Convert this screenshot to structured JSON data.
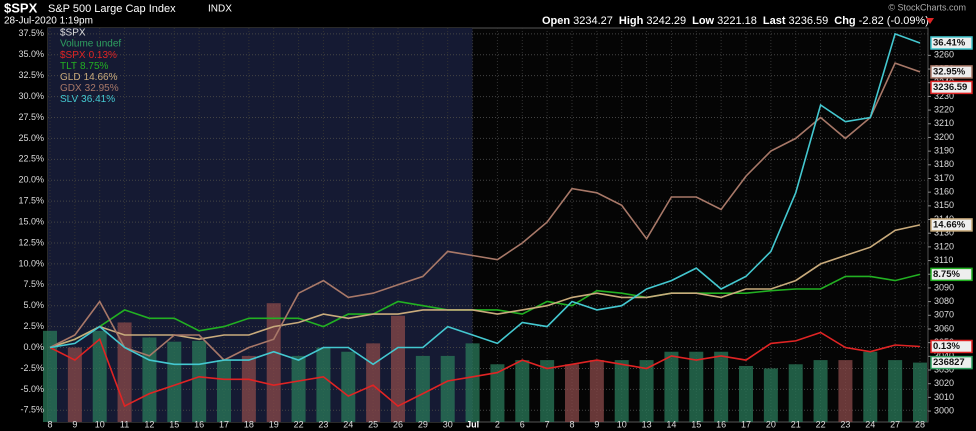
{
  "chart_data": {
    "type": "line",
    "header": {
      "symbol": "$SPX",
      "name": "S&P 500 Large Cap Index",
      "exchange": "INDX",
      "date": "28-Jul-2020 1:19pm",
      "quote": [
        {
          "label": "Open",
          "value": "3234.27"
        },
        {
          "label": "High",
          "value": "3242.29"
        },
        {
          "label": "Low",
          "value": "3221.18"
        },
        {
          "label": "Last",
          "value": "3236.59"
        },
        {
          "label": "Chg",
          "value": "-2.82 (-0.09%)"
        }
      ],
      "credit": "© StockCharts.com"
    },
    "legend_title": "$SPX",
    "categories": [
      "8",
      "9",
      "10",
      "11",
      "12",
      "15",
      "16",
      "17",
      "18",
      "19",
      "22",
      "23",
      "24",
      "25",
      "26",
      "29",
      "30",
      "Jul",
      "2",
      "6",
      "7",
      "8",
      "9",
      "10",
      "13",
      "14",
      "15",
      "16",
      "17",
      "20",
      "21",
      "22",
      "23",
      "24",
      "27",
      "28"
    ],
    "series": [
      {
        "name": "$SPX",
        "last_label": "0.13%",
        "color": "#e02424",
        "values": [
          0,
          -1.5,
          1,
          -7,
          -5.5,
          -4.5,
          -3.5,
          -3.8,
          -3.8,
          -4.5,
          -4,
          -3.5,
          -5.8,
          -4.5,
          -7,
          -5.5,
          -4,
          -3.5,
          -3,
          -1.5,
          -2.5,
          -2,
          -1.5,
          -2,
          -2.5,
          -1,
          -1.5,
          -1,
          -1.5,
          0.5,
          0.8,
          1.8,
          0,
          -0.5,
          0.3,
          0.13
        ]
      },
      {
        "name": "TLT",
        "last_label": "8.75%",
        "color": "#22b022",
        "values": [
          0,
          1,
          2.5,
          4.5,
          3.5,
          3.5,
          2,
          2.5,
          3.5,
          3.5,
          3.5,
          2.5,
          4,
          4,
          5.5,
          5,
          4.5,
          4.5,
          4.5,
          4,
          5.5,
          5,
          6.8,
          6.5,
          6,
          6.5,
          6.5,
          6.5,
          6.5,
          6.8,
          7,
          7,
          8.5,
          8.5,
          8,
          8.75
        ]
      },
      {
        "name": "GLD",
        "last_label": "14.66%",
        "color": "#c9ab7c",
        "values": [
          0,
          1,
          2.5,
          1.5,
          1.5,
          1.5,
          1,
          1.5,
          1.5,
          2.5,
          3,
          4,
          3.5,
          4,
          4,
          4.5,
          4.5,
          4.5,
          4,
          4.5,
          5,
          6,
          6.5,
          6,
          6,
          6.5,
          6.5,
          6,
          7,
          7,
          8,
          10,
          11,
          12,
          14,
          14.66
        ]
      },
      {
        "name": "GDX",
        "last_label": "32.95%",
        "color": "#a87868",
        "values": [
          0,
          1.5,
          5.5,
          0,
          -1,
          1.5,
          1.5,
          -1.5,
          0,
          1,
          6.5,
          8,
          6,
          6.5,
          7.5,
          8.5,
          11.5,
          11,
          10.5,
          12.5,
          15,
          19,
          18.5,
          17,
          13,
          18,
          18,
          16.5,
          20.5,
          23.5,
          25,
          27.5,
          25,
          27.5,
          34,
          32.95
        ]
      },
      {
        "name": "SLV",
        "last_label": "36.41%",
        "color": "#44c8d0",
        "values": [
          0,
          0.5,
          2.5,
          0,
          -1.5,
          -2,
          -2,
          -1.5,
          -1.5,
          -0.5,
          -1.5,
          0,
          0,
          -2,
          0,
          0,
          2.5,
          1.5,
          0.5,
          3,
          2.5,
          5.5,
          4.5,
          5,
          7,
          8,
          9.5,
          7,
          8.5,
          11.5,
          18.5,
          29,
          27,
          27.5,
          37.5,
          36.41
        ]
      }
    ],
    "volume": {
      "name": "Volume undef",
      "last_label": "236827",
      "color": "#2fa060",
      "values": [
        2,
        0,
        2,
        3,
        1.2,
        0.7,
        0.8,
        -1.5,
        -1,
        5.3,
        -1,
        0,
        -0.5,
        0.5,
        3.8,
        -1,
        -1,
        0.5,
        -2,
        -1.5,
        -1.5,
        -2,
        -1.5,
        -1.5,
        -1.5,
        -0.5,
        -0.5,
        -0.5,
        -2.2,
        -2.5,
        -2,
        -1.5,
        -1.5,
        -0.5,
        -1.5,
        -1.8
      ],
      "colors": [
        "#2a7a5a",
        "#8a4a4a",
        "#2a7a5a",
        "#8a4a4a",
        "#2a7a5a",
        "#2a7a5a",
        "#2a7a5a",
        "#2a7a5a",
        "#8a4a4a",
        "#8a4a4a",
        "#2a7a5a",
        "#2a7a5a",
        "#2a7a5a",
        "#8a4a4a",
        "#8a4a4a",
        "#2a7a5a",
        "#2a7a5a",
        "#2a7a5a",
        "#2a7a5a",
        "#2a7a5a",
        "#2a7a5a",
        "#8a4a4a",
        "#8a4a4a",
        "#2a7a5a",
        "#2a7a5a",
        "#2a7a5a",
        "#2a7a5a",
        "#2a7a5a",
        "#2a7a5a",
        "#2a7a5a",
        "#2a7a5a",
        "#2a7a5a",
        "#8a4a4a",
        "#2a7a5a",
        "#2a7a5a",
        "#2a7a5a"
      ]
    },
    "shade_until": "Jul",
    "ylim": [
      -8.9,
      38.2
    ],
    "yticks": [
      {
        "value": -7.5,
        "label": "-7.5%"
      },
      {
        "value": -5,
        "label": "-5.0%"
      },
      {
        "value": -2.5,
        "label": "-2.5%"
      },
      {
        "value": 0,
        "label": "0.0%"
      },
      {
        "value": 2.5,
        "label": "2.5%"
      },
      {
        "value": 5,
        "label": "5.0%"
      },
      {
        "value": 7.5,
        "label": "7.5%"
      },
      {
        "value": 10,
        "label": "10.0%"
      },
      {
        "value": 12.5,
        "label": "12.5%"
      },
      {
        "value": 15,
        "label": "15.0%"
      },
      {
        "value": 17.5,
        "label": "17.5%"
      },
      {
        "value": 20,
        "label": "20.0%"
      },
      {
        "value": 22.5,
        "label": "22.5%"
      },
      {
        "value": 25,
        "label": "25.0%"
      },
      {
        "value": 27.5,
        "label": "27.5%"
      },
      {
        "value": 30,
        "label": "30.0%"
      },
      {
        "value": 32.5,
        "label": "32.5%"
      },
      {
        "value": 35,
        "label": "35.0%"
      },
      {
        "value": 37.5,
        "label": "37.5%"
      }
    ],
    "y2lim": [
      2992,
      3280
    ],
    "y2ticks": [
      3000,
      3010,
      3020,
      3030,
      3040,
      3050,
      3060,
      3070,
      3080,
      3090,
      3100,
      3110,
      3120,
      3130,
      3140,
      3150,
      3160,
      3170,
      3180,
      3190,
      3200,
      3210,
      3220,
      3230,
      3240,
      3250,
      3260
    ],
    "price_last": 3236.59,
    "grid": true
  }
}
